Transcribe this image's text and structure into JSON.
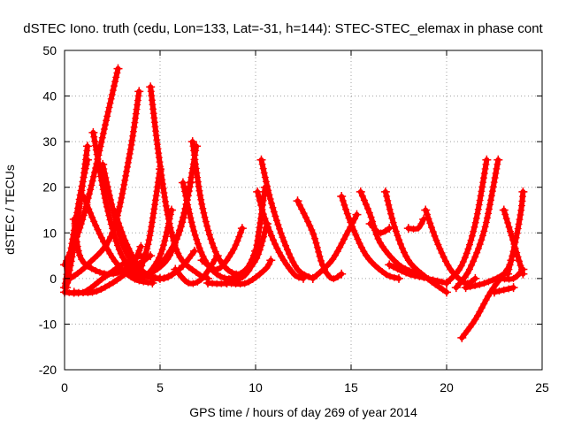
{
  "chart_data": {
    "type": "scatter",
    "title": "dSTEC Iono. truth (cedu, Lon=133, Lat=-31, h=144): STEC-STEC_elemax in phase cont",
    "xlabel": "GPS time / hours of day 269 of year 2014",
    "ylabel": "dSTEC  / TECUs",
    "xlim": [
      0,
      25
    ],
    "ylim": [
      -20,
      50
    ],
    "x_ticks": [
      0,
      5,
      10,
      15,
      20,
      25
    ],
    "y_ticks": [
      -20,
      -10,
      0,
      10,
      20,
      30,
      40,
      50
    ],
    "x_tick_labels": [
      "0",
      "5",
      "10",
      "15",
      "20",
      "25"
    ],
    "y_tick_labels": [
      "-20",
      "-10",
      "0",
      "10",
      "20",
      "30",
      "40",
      "50"
    ],
    "grid": true,
    "marker": "plus",
    "color": "#ff0000",
    "arcs": [
      {
        "x": [
          0.0,
          0.4,
          0.8,
          1.2
        ],
        "y": [
          -2,
          8,
          18,
          26
        ]
      },
      {
        "x": [
          0.0,
          0.8,
          1.5,
          2.2,
          2.8
        ],
        "y": [
          3,
          11,
          22,
          35,
          46
        ]
      },
      {
        "x": [
          0.1,
          0.6,
          1.2
        ],
        "y": [
          -2,
          10,
          29
        ]
      },
      {
        "x": [
          0.3,
          1.2,
          2.5,
          3.4,
          3.9
        ],
        "y": [
          0,
          3,
          10,
          27,
          41
        ]
      },
      {
        "x": [
          0.5,
          0.8,
          1.5,
          2.5,
          3.5,
          4.0
        ],
        "y": [
          13,
          5,
          2,
          1,
          3,
          7
        ]
      },
      {
        "x": [
          1.0,
          1.7,
          2.6,
          3.6,
          4.6
        ],
        "y": [
          18,
          11,
          4,
          0,
          -1
        ]
      },
      {
        "x": [
          0.0,
          1.0,
          2.0,
          3.0,
          4.0
        ],
        "y": [
          -3,
          -3,
          0,
          3,
          5
        ]
      },
      {
        "x": [
          1.5,
          2.2,
          3.0,
          4.0,
          5.0
        ],
        "y": [
          32,
          16,
          5,
          1,
          0
        ]
      },
      {
        "x": [
          0.5,
          1.5,
          2.5,
          3.5,
          4.5
        ],
        "y": [
          -3,
          -3,
          -1,
          2,
          5
        ]
      },
      {
        "x": [
          2.0,
          2.6,
          3.2,
          4.1,
          5.2,
          6.0
        ],
        "y": [
          25,
          14,
          6,
          1,
          0,
          2
        ]
      },
      {
        "x": [
          2.6,
          3.2,
          4.0,
          5.0,
          6.0,
          6.8
        ],
        "y": [
          15,
          8,
          2,
          0,
          2,
          6
        ]
      },
      {
        "x": [
          4.5,
          4.9,
          5.4,
          6.0,
          7.0,
          7.5
        ],
        "y": [
          42,
          28,
          14,
          5,
          1,
          0
        ]
      },
      {
        "x": [
          3.2,
          4.0,
          5.0,
          5.6
        ],
        "y": [
          3,
          0,
          5,
          15
        ]
      },
      {
        "x": [
          3.8,
          4.4,
          5.0
        ],
        "y": [
          0,
          8,
          24
        ]
      },
      {
        "x": [
          4.0,
          5.0,
          6.0,
          6.6
        ],
        "y": [
          0,
          3,
          10,
          21
        ]
      },
      {
        "x": [
          4.5,
          5.5,
          6.3,
          6.9
        ],
        "y": [
          1,
          5,
          15,
          29
        ]
      },
      {
        "x": [
          6.2,
          6.8,
          7.5,
          8.5,
          9.5,
          10.0
        ],
        "y": [
          21,
          10,
          3,
          0,
          2,
          6
        ]
      },
      {
        "x": [
          6.7,
          7.2,
          8.0,
          9.0,
          10.0,
          10.6
        ],
        "y": [
          30,
          16,
          5,
          1,
          4,
          12
        ]
      },
      {
        "x": [
          7.2,
          8.0,
          8.8,
          9.3
        ],
        "y": [
          4,
          2,
          6,
          11
        ]
      },
      {
        "x": [
          5.8,
          6.5,
          7.2,
          8.0
        ],
        "y": [
          2,
          -1,
          0,
          5
        ]
      },
      {
        "x": [
          7.5,
          8.5,
          9.5,
          10.0,
          10.5
        ],
        "y": [
          -1,
          -1,
          1,
          6,
          20
        ]
      },
      {
        "x": [
          8.5,
          9.5,
          10.5,
          10.8
        ],
        "y": [
          -1,
          -1,
          2,
          4
        ]
      },
      {
        "x": [
          10.1,
          10.5,
          11.2,
          12.0,
          12.5
        ],
        "y": [
          19,
          13,
          6,
          1,
          0
        ]
      },
      {
        "x": [
          10.3,
          10.8,
          11.5,
          12.2,
          13.0
        ],
        "y": [
          26,
          17,
          8,
          2,
          0
        ]
      },
      {
        "x": [
          12.2,
          13.0,
          13.5,
          14.0,
          14.5
        ],
        "y": [
          17,
          10,
          3,
          0,
          1
        ]
      },
      {
        "x": [
          13.0,
          14.0,
          14.8,
          15.3
        ],
        "y": [
          0,
          4,
          10,
          14
        ]
      },
      {
        "x": [
          14.5,
          15.0,
          15.8,
          16.8,
          17.5
        ],
        "y": [
          18,
          12,
          5,
          1,
          0
        ]
      },
      {
        "x": [
          15.5,
          16.0,
          16.5,
          17.5,
          18.5
        ],
        "y": [
          19,
          14,
          8,
          3,
          1
        ]
      },
      {
        "x": [
          16.0,
          16.5,
          17.0
        ],
        "y": [
          12,
          10,
          11
        ]
      },
      {
        "x": [
          16.8,
          17.3,
          18.0,
          19.0,
          20.0
        ],
        "y": [
          19,
          11,
          4,
          0,
          -3
        ]
      },
      {
        "x": [
          17.0,
          18.0,
          19.0,
          20.0
        ],
        "y": [
          3,
          1,
          0,
          -1
        ]
      },
      {
        "x": [
          18.0,
          18.5,
          18.8
        ],
        "y": [
          11,
          11,
          13
        ]
      },
      {
        "x": [
          18.9,
          19.5,
          20.2,
          21.0,
          21.5
        ],
        "y": [
          15,
          8,
          2,
          -1,
          0
        ]
      },
      {
        "x": [
          20.0,
          20.8,
          21.5,
          22.1
        ],
        "y": [
          -1,
          3,
          12,
          26
        ]
      },
      {
        "x": [
          20.5,
          21.2,
          22.0,
          22.7
        ],
        "y": [
          -2,
          2,
          11,
          26
        ]
      },
      {
        "x": [
          21.0,
          22.0,
          23.0,
          23.4
        ],
        "y": [
          -2,
          -1,
          1,
          4
        ]
      },
      {
        "x": [
          20.8,
          21.5,
          22.3,
          23.0
        ],
        "y": [
          -13,
          -9,
          -3,
          1
        ]
      },
      {
        "x": [
          22.5,
          23.5
        ],
        "y": [
          -3,
          -2
        ]
      },
      {
        "x": [
          23.0,
          23.5,
          24.0
        ],
        "y": [
          15,
          8,
          1
        ]
      },
      {
        "x": [
          23.2,
          23.6,
          23.9,
          24.0
        ],
        "y": [
          1,
          8,
          15,
          19
        ]
      },
      {
        "x": [
          22.8,
          23.5,
          24.0
        ],
        "y": [
          0,
          0,
          2
        ]
      }
    ]
  }
}
